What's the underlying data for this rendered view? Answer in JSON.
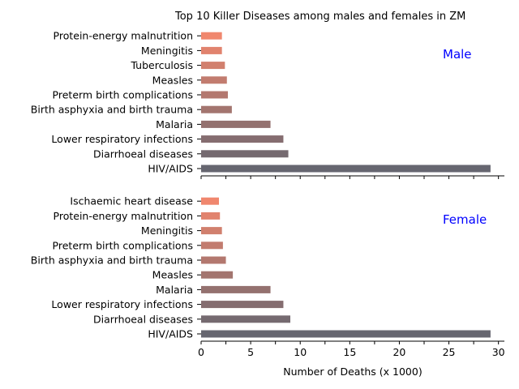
{
  "chart_data": {
    "type": "bar",
    "orientation": "horizontal",
    "title": "Top 10 Killer Diseases among males and females in ZM",
    "xlabel": "Number of Deaths (x 1000)",
    "xlim": [
      0,
      30.6
    ],
    "xticks": [
      0,
      5,
      10,
      15,
      20,
      25,
      30
    ],
    "panel_label_color": "#0000ff",
    "panels": [
      {
        "panel_label": "Male",
        "categories": [
          "HIV/AIDS",
          "Diarrhoeal diseases",
          "Lower respiratory infections",
          "Malaria",
          "Birth asphyxia and birth trauma",
          "Preterm birth complications",
          "Measles",
          "Tuberculosis",
          "Meningitis",
          "Protein-energy malnutrition"
        ],
        "values": [
          29.2,
          8.8,
          8.3,
          7.0,
          3.1,
          2.7,
          2.6,
          2.4,
          2.1,
          2.1
        ]
      },
      {
        "panel_label": "Female",
        "categories": [
          "HIV/AIDS",
          "Diarrhoeal diseases",
          "Lower respiratory infections",
          "Malaria",
          "Measles",
          "Birth asphyxia and birth trauma",
          "Preterm birth complications",
          "Meningitis",
          "Protein-energy malnutrition",
          "Ischaemic heart disease"
        ],
        "values": [
          29.2,
          9.0,
          8.3,
          7.0,
          3.2,
          2.5,
          2.2,
          2.1,
          1.9,
          1.8
        ]
      }
    ]
  }
}
